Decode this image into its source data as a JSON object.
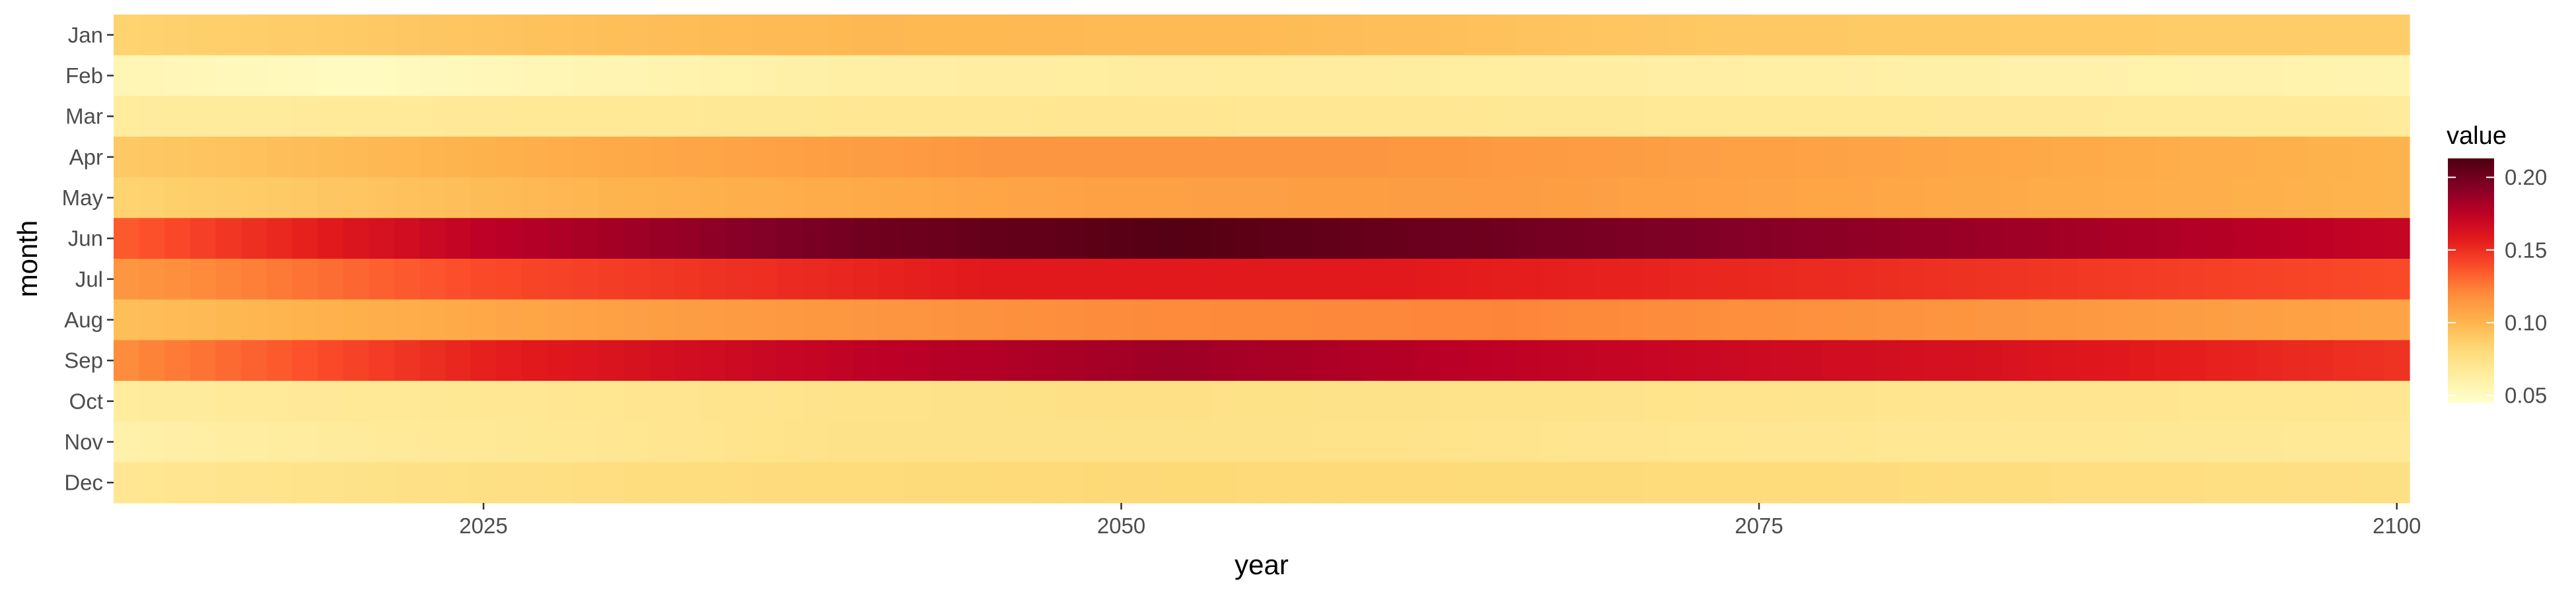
{
  "chart_data": {
    "type": "heatmap",
    "title": "",
    "xlabel": "year",
    "ylabel": "month",
    "x_range": [
      2011,
      2100
    ],
    "x_ticks": [
      2025,
      2050,
      2075,
      2100
    ],
    "x_tick_labels": [
      "2025",
      "2050",
      "2075",
      "2100"
    ],
    "months": [
      "Jan",
      "Feb",
      "Mar",
      "Apr",
      "May",
      "Jun",
      "Jul",
      "Aug",
      "Sep",
      "Oct",
      "Nov",
      "Dec"
    ],
    "month_profiles": [
      {
        "month": "Jan",
        "year_points": [
          2011,
          2030,
          2040,
          2055,
          2075,
          2100
        ],
        "values": [
          0.085,
          0.095,
          0.098,
          0.097,
          0.09,
          0.088
        ]
      },
      {
        "month": "Feb",
        "year_points": [
          2011,
          2020,
          2040,
          2055,
          2075,
          2100
        ],
        "values": [
          0.055,
          0.05,
          0.062,
          0.065,
          0.062,
          0.057
        ]
      },
      {
        "month": "Mar",
        "year_points": [
          2011,
          2030,
          2050,
          2075,
          2100
        ],
        "values": [
          0.065,
          0.068,
          0.07,
          0.068,
          0.066
        ]
      },
      {
        "month": "Apr",
        "year_points": [
          2011,
          2030,
          2045,
          2060,
          2080,
          2100
        ],
        "values": [
          0.09,
          0.105,
          0.115,
          0.115,
          0.108,
          0.1
        ]
      },
      {
        "month": "May",
        "year_points": [
          2011,
          2030,
          2050,
          2065,
          2085,
          2100
        ],
        "values": [
          0.085,
          0.1,
          0.11,
          0.112,
          0.105,
          0.1
        ]
      },
      {
        "month": "Jun",
        "year_points": [
          2011,
          2025,
          2040,
          2052,
          2065,
          2085,
          2100
        ],
        "values": [
          0.135,
          0.175,
          0.2,
          0.21,
          0.2,
          0.185,
          0.172
        ]
      },
      {
        "month": "Jul",
        "year_points": [
          2011,
          2025,
          2045,
          2060,
          2080,
          2100
        ],
        "values": [
          0.115,
          0.14,
          0.158,
          0.158,
          0.15,
          0.14
        ]
      },
      {
        "month": "Aug",
        "year_points": [
          2011,
          2030,
          2050,
          2065,
          2085,
          2100
        ],
        "values": [
          0.095,
          0.11,
          0.12,
          0.122,
          0.115,
          0.108
        ]
      },
      {
        "month": "Sep",
        "year_points": [
          2011,
          2025,
          2040,
          2052,
          2065,
          2085,
          2100
        ],
        "values": [
          0.12,
          0.155,
          0.175,
          0.185,
          0.175,
          0.162,
          0.148
        ]
      },
      {
        "month": "Oct",
        "year_points": [
          2011,
          2035,
          2050,
          2075,
          2100
        ],
        "values": [
          0.065,
          0.072,
          0.075,
          0.072,
          0.07
        ]
      },
      {
        "month": "Nov",
        "year_points": [
          2011,
          2020,
          2040,
          2055,
          2075,
          2100
        ],
        "values": [
          0.06,
          0.066,
          0.074,
          0.074,
          0.07,
          0.068
        ]
      },
      {
        "month": "Dec",
        "year_points": [
          2011,
          2030,
          2050,
          2075,
          2100
        ],
        "values": [
          0.07,
          0.078,
          0.082,
          0.08,
          0.076
        ]
      }
    ],
    "legend": {
      "title": "value",
      "ticks": [
        0.05,
        0.1,
        0.15,
        0.2
      ],
      "tick_labels": [
        "0.05",
        "0.10",
        "0.15",
        "0.20"
      ],
      "range": [
        0.045,
        0.213
      ],
      "placement": "right"
    },
    "color_scale": {
      "name": "YlOrRd",
      "stops": [
        "#ffffcc",
        "#ffeda0",
        "#fed976",
        "#feb24c",
        "#fd8d3c",
        "#fc4e2a",
        "#e31a1c",
        "#bd0026",
        "#800026",
        "#4d0010"
      ]
    },
    "grid": false,
    "panel_background": "#ebebeb"
  }
}
